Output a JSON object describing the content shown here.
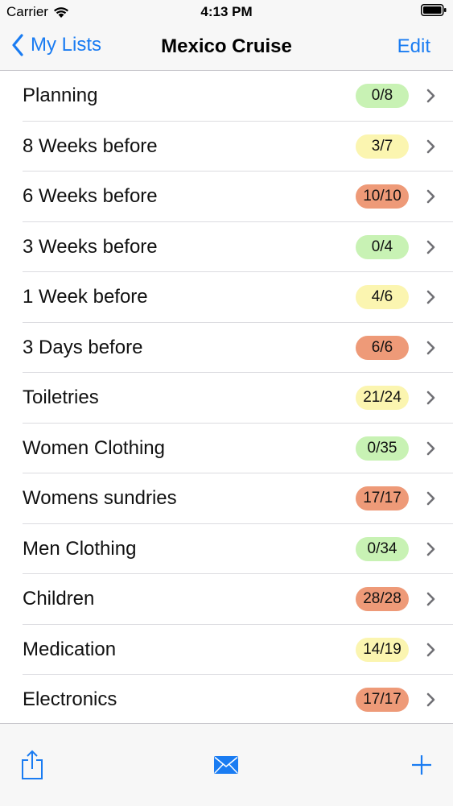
{
  "status_bar": {
    "carrier": "Carrier",
    "time": "4:13 PM"
  },
  "nav": {
    "back_label": "My Lists",
    "title": "Mexico Cruise",
    "edit_label": "Edit"
  },
  "colors": {
    "accent": "#1a7cf2",
    "badge_green": "#c8f2b4",
    "badge_yellow": "#fbf5b0",
    "badge_orange": "#ee9a78"
  },
  "lists": [
    {
      "label": "Planning",
      "count": "0/8",
      "status": "green"
    },
    {
      "label": "8 Weeks before",
      "count": "3/7",
      "status": "yellow"
    },
    {
      "label": "6 Weeks before",
      "count": "10/10",
      "status": "orange"
    },
    {
      "label": "3 Weeks before",
      "count": "0/4",
      "status": "green"
    },
    {
      "label": "1 Week before",
      "count": "4/6",
      "status": "yellow"
    },
    {
      "label": "3 Days before",
      "count": "6/6",
      "status": "orange"
    },
    {
      "label": "Toiletries",
      "count": "21/24",
      "status": "yellow"
    },
    {
      "label": "Women Clothing",
      "count": "0/35",
      "status": "green"
    },
    {
      "label": "Womens sundries",
      "count": "17/17",
      "status": "orange"
    },
    {
      "label": "Men Clothing",
      "count": "0/34",
      "status": "green"
    },
    {
      "label": "Children",
      "count": "28/28",
      "status": "orange"
    },
    {
      "label": "Medication",
      "count": "14/19",
      "status": "yellow"
    },
    {
      "label": "Electronics",
      "count": "17/17",
      "status": "orange"
    }
  ],
  "toolbar": {
    "icons": [
      "share-icon",
      "envelope-icon",
      "plus-icon"
    ]
  }
}
